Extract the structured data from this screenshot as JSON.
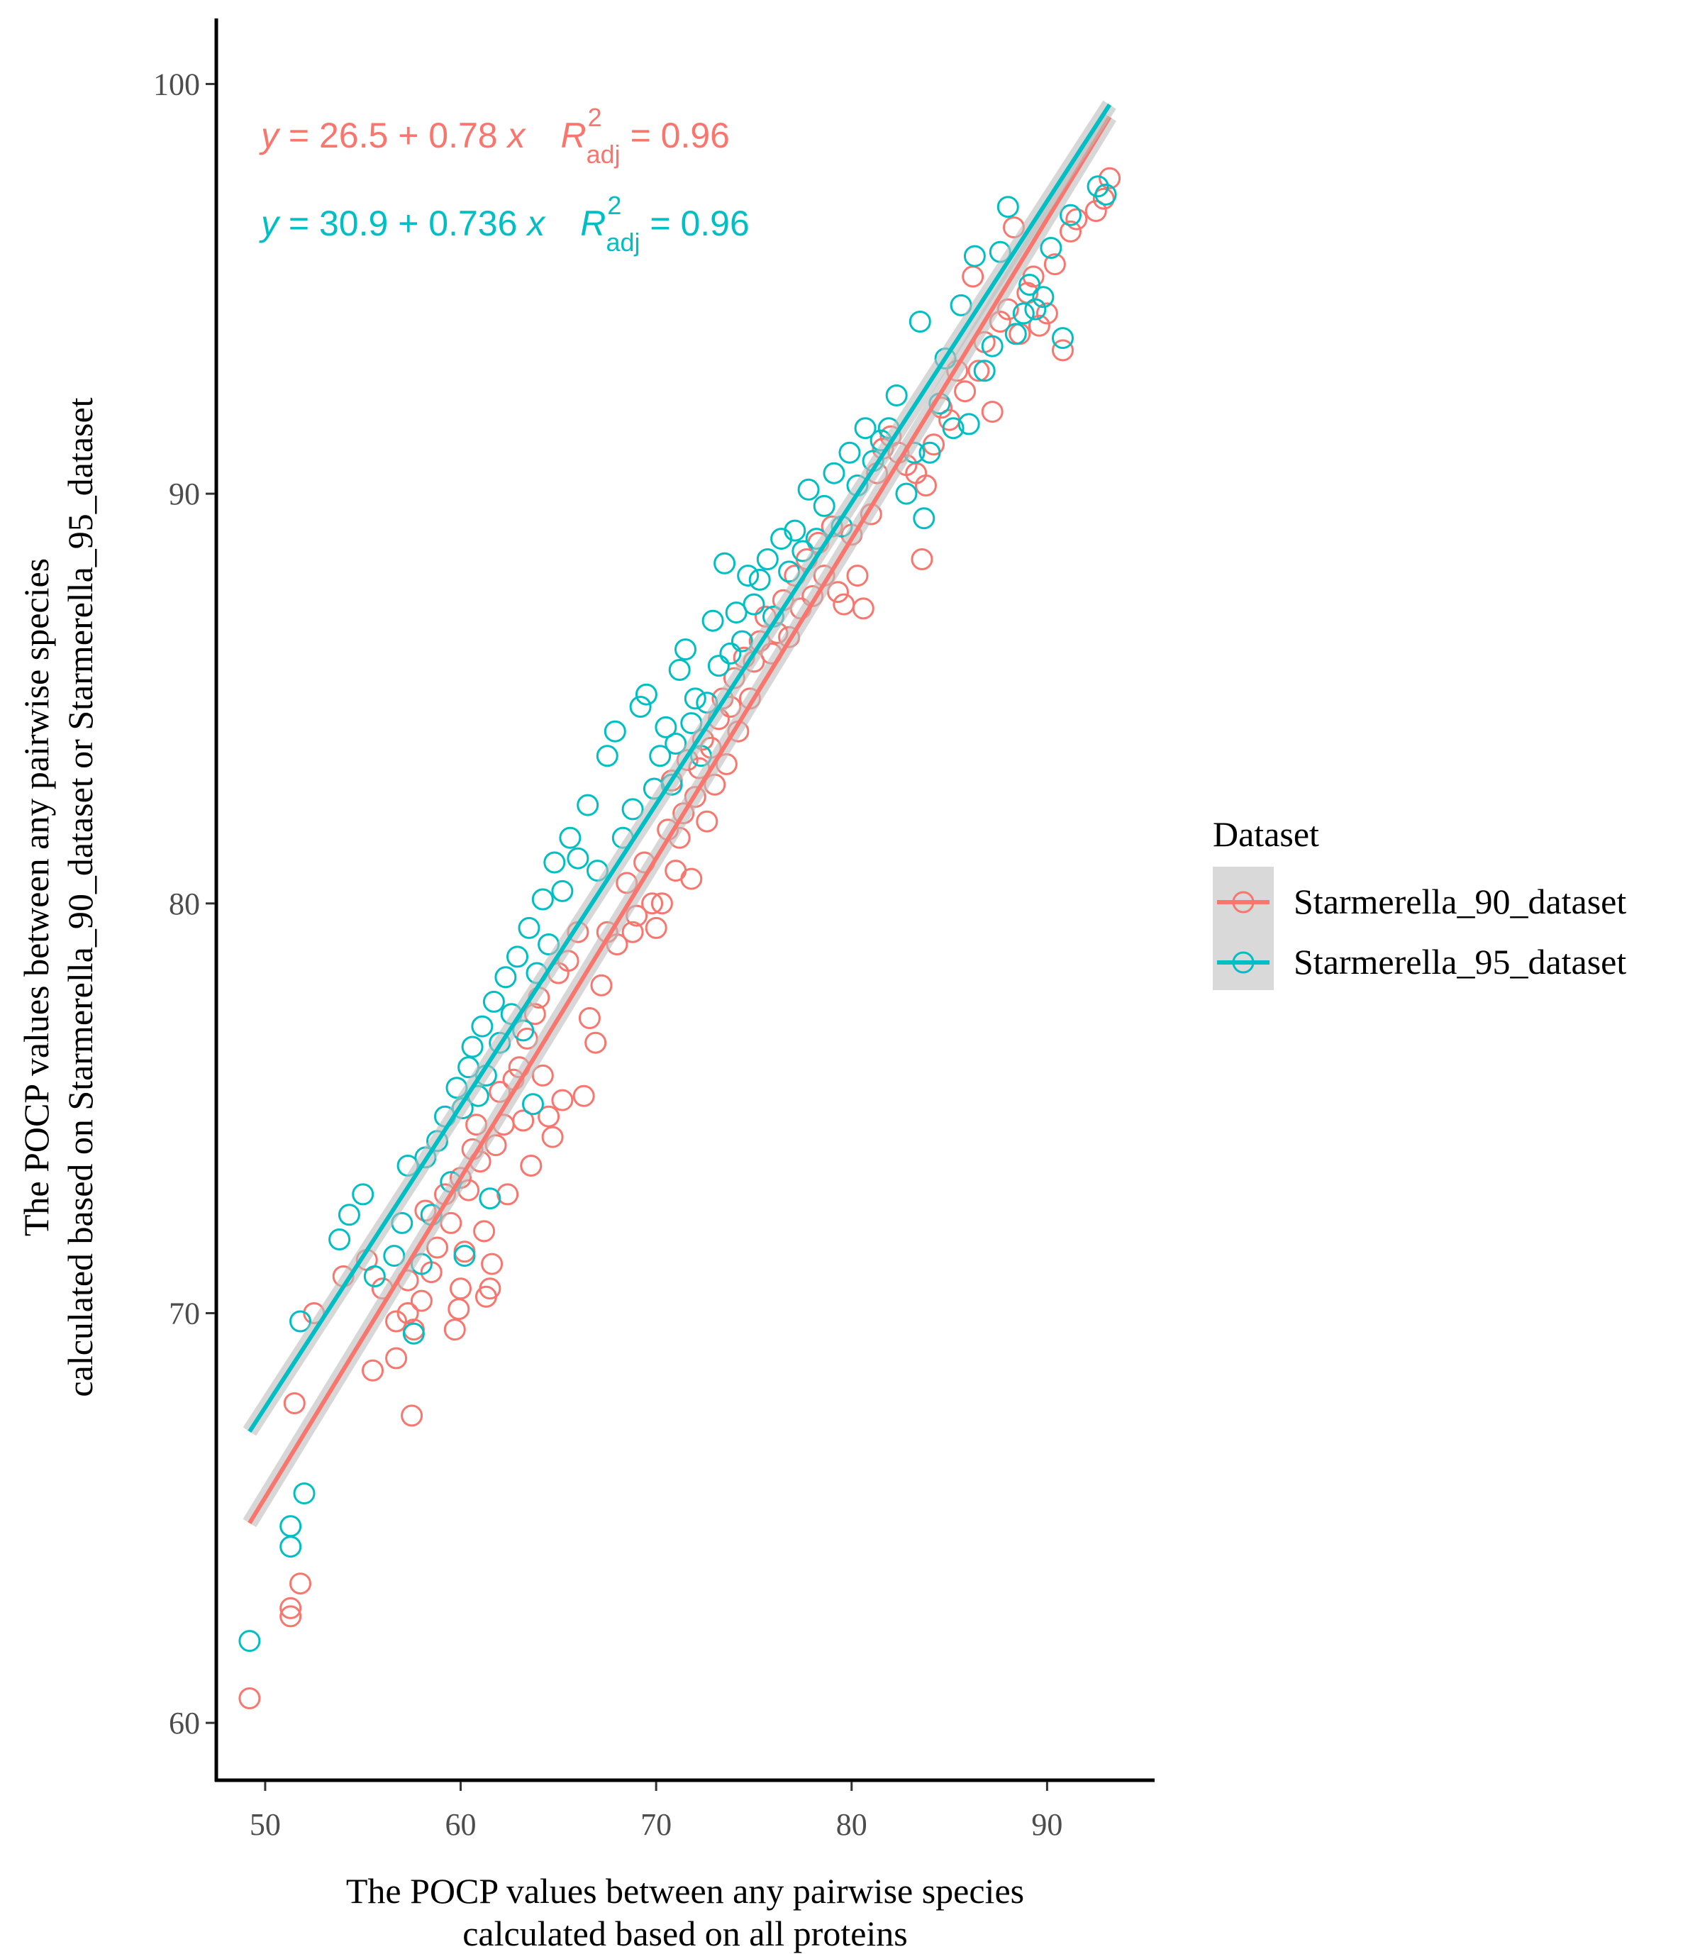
{
  "chart_data": {
    "type": "scatter",
    "xlabel": [
      "The POCP values between any pairwise species",
      "calculated based on all proteins"
    ],
    "ylabel": [
      "The POCP values between any pairwise species",
      "calculated based on Starmerella_90_dataset or Starmerella_95_dataset"
    ],
    "xlim": [
      47.5,
      95.5
    ],
    "ylim": [
      58.6,
      101.6
    ],
    "x_ticks": [
      "50",
      "60",
      "70",
      "80",
      "90"
    ],
    "y_ticks": [
      "60",
      "70",
      "80",
      "90",
      "100"
    ],
    "grid": false,
    "legend_position": "right",
    "legend_title": "Dataset",
    "series": [
      {
        "name": "Starmerella_90_dataset",
        "color": "#F8766D",
        "marker": "open-circle",
        "fit": {
          "intercept": 26.5,
          "slope": 0.78,
          "x_range": [
            49.2,
            93.2
          ]
        },
        "equation": {
          "y": "y",
          "body": " = 26.5 + 0.78 ",
          "x": "x",
          "R": "R",
          "sup": "2",
          "sub": "adj",
          "r2": " = 0.96"
        },
        "points": [
          [
            49.2,
            60.6
          ],
          [
            51.3,
            62.6
          ],
          [
            51.3,
            62.8
          ],
          [
            51.8,
            63.4
          ],
          [
            51.5,
            67.8
          ],
          [
            52.5,
            70.0
          ],
          [
            54.0,
            70.9
          ],
          [
            55.2,
            71.3
          ],
          [
            55.5,
            68.6
          ],
          [
            56.0,
            70.6
          ],
          [
            56.7,
            68.9
          ],
          [
            56.7,
            69.8
          ],
          [
            57.3,
            70.0
          ],
          [
            57.3,
            70.8
          ],
          [
            57.5,
            67.5
          ],
          [
            57.6,
            69.6
          ],
          [
            58.0,
            70.3
          ],
          [
            58.5,
            71.0
          ],
          [
            58.2,
            72.5
          ],
          [
            58.8,
            71.6
          ],
          [
            59.2,
            72.9
          ],
          [
            59.5,
            72.2
          ],
          [
            59.7,
            69.6
          ],
          [
            59.9,
            70.1
          ],
          [
            60.0,
            70.6
          ],
          [
            60.2,
            71.5
          ],
          [
            60.0,
            73.3
          ],
          [
            60.4,
            73.0
          ],
          [
            60.6,
            74.0
          ],
          [
            60.8,
            74.6
          ],
          [
            61.0,
            73.7
          ],
          [
            61.2,
            72.0
          ],
          [
            61.3,
            70.4
          ],
          [
            61.5,
            70.6
          ],
          [
            61.6,
            71.2
          ],
          [
            61.8,
            74.1
          ],
          [
            62.0,
            75.4
          ],
          [
            62.2,
            74.6
          ],
          [
            62.4,
            72.9
          ],
          [
            62.7,
            75.7
          ],
          [
            63.0,
            76.0
          ],
          [
            63.2,
            74.7
          ],
          [
            63.4,
            76.7
          ],
          [
            63.6,
            73.6
          ],
          [
            63.8,
            77.3
          ],
          [
            64.0,
            77.7
          ],
          [
            64.2,
            75.8
          ],
          [
            64.5,
            74.8
          ],
          [
            64.7,
            74.3
          ],
          [
            65.0,
            78.3
          ],
          [
            65.2,
            75.2
          ],
          [
            65.5,
            78.6
          ],
          [
            66.0,
            79.3
          ],
          [
            66.3,
            75.3
          ],
          [
            66.6,
            77.2
          ],
          [
            66.9,
            76.6
          ],
          [
            67.2,
            78.0
          ],
          [
            67.5,
            79.3
          ],
          [
            68.0,
            79.0
          ],
          [
            68.5,
            80.5
          ],
          [
            68.8,
            79.3
          ],
          [
            69.0,
            79.7
          ],
          [
            69.4,
            81.0
          ],
          [
            69.8,
            80.0
          ],
          [
            70.0,
            79.4
          ],
          [
            70.3,
            80.0
          ],
          [
            70.6,
            81.8
          ],
          [
            70.8,
            83.0
          ],
          [
            71.0,
            80.8
          ],
          [
            71.2,
            81.6
          ],
          [
            71.4,
            82.2
          ],
          [
            71.6,
            83.5
          ],
          [
            71.8,
            80.6
          ],
          [
            72.0,
            82.6
          ],
          [
            72.2,
            83.3
          ],
          [
            72.4,
            84.0
          ],
          [
            72.6,
            82.0
          ],
          [
            72.8,
            83.8
          ],
          [
            73.0,
            82.9
          ],
          [
            73.2,
            84.5
          ],
          [
            73.4,
            85.0
          ],
          [
            73.6,
            83.4
          ],
          [
            73.8,
            84.8
          ],
          [
            74.0,
            85.5
          ],
          [
            74.2,
            84.2
          ],
          [
            74.5,
            86.0
          ],
          [
            74.8,
            85.0
          ],
          [
            75.0,
            85.9
          ],
          [
            75.3,
            86.4
          ],
          [
            75.6,
            87.0
          ],
          [
            75.9,
            86.1
          ],
          [
            76.2,
            86.6
          ],
          [
            76.5,
            87.4
          ],
          [
            76.8,
            86.5
          ],
          [
            77.1,
            88.0
          ],
          [
            77.4,
            87.2
          ],
          [
            77.7,
            88.4
          ],
          [
            78.0,
            87.5
          ],
          [
            78.3,
            88.8
          ],
          [
            78.6,
            88.0
          ],
          [
            79.0,
            89.2
          ],
          [
            79.3,
            87.6
          ],
          [
            79.6,
            87.3
          ],
          [
            80.0,
            89.0
          ],
          [
            80.3,
            88.0
          ],
          [
            80.6,
            87.2
          ],
          [
            81.0,
            89.5
          ],
          [
            81.3,
            90.5
          ],
          [
            81.6,
            91.1
          ],
          [
            82.0,
            91.4
          ],
          [
            82.4,
            91.0
          ],
          [
            82.8,
            90.7
          ],
          [
            83.3,
            90.5
          ],
          [
            83.6,
            88.4
          ],
          [
            83.8,
            90.2
          ],
          [
            84.2,
            91.2
          ],
          [
            84.6,
            92.1
          ],
          [
            85.0,
            91.8
          ],
          [
            85.4,
            93.0
          ],
          [
            85.8,
            92.5
          ],
          [
            86.2,
            95.3
          ],
          [
            86.5,
            93.0
          ],
          [
            86.8,
            93.7
          ],
          [
            87.2,
            92.0
          ],
          [
            87.6,
            94.2
          ],
          [
            88.0,
            94.5
          ],
          [
            88.3,
            96.5
          ],
          [
            88.6,
            93.9
          ],
          [
            89.0,
            94.9
          ],
          [
            89.3,
            95.3
          ],
          [
            89.6,
            94.1
          ],
          [
            90.0,
            94.4
          ],
          [
            90.4,
            95.6
          ],
          [
            90.8,
            93.5
          ],
          [
            91.2,
            96.4
          ],
          [
            91.5,
            96.7
          ],
          [
            92.5,
            96.9
          ],
          [
            92.9,
            97.2
          ],
          [
            93.2,
            97.7
          ]
        ]
      },
      {
        "name": "Starmerella_95_dataset",
        "color": "#00BFC4",
        "marker": "open-circle",
        "fit": {
          "intercept": 30.9,
          "slope": 0.736,
          "x_range": [
            49.2,
            93.2
          ]
        },
        "equation": {
          "y": "y",
          "body": " = 30.9 + 0.736 ",
          "x": "x",
          "R": "R",
          "sup": "2",
          "sub": "adj",
          "r2": " = 0.96"
        },
        "points": [
          [
            49.2,
            62.0
          ],
          [
            51.3,
            64.3
          ],
          [
            51.3,
            64.8
          ],
          [
            52.0,
            65.6
          ],
          [
            51.8,
            69.8
          ],
          [
            53.8,
            71.8
          ],
          [
            54.3,
            72.4
          ],
          [
            55.0,
            72.9
          ],
          [
            55.6,
            70.9
          ],
          [
            56.6,
            71.4
          ],
          [
            57.0,
            72.2
          ],
          [
            57.3,
            73.6
          ],
          [
            57.6,
            69.5
          ],
          [
            58.0,
            71.2
          ],
          [
            58.2,
            73.8
          ],
          [
            58.5,
            72.4
          ],
          [
            58.8,
            74.2
          ],
          [
            59.2,
            74.8
          ],
          [
            59.5,
            73.2
          ],
          [
            59.8,
            75.5
          ],
          [
            60.1,
            75.0
          ],
          [
            60.2,
            71.4
          ],
          [
            60.4,
            76.0
          ],
          [
            60.6,
            76.5
          ],
          [
            60.9,
            75.3
          ],
          [
            61.1,
            77.0
          ],
          [
            61.3,
            75.8
          ],
          [
            61.5,
            72.8
          ],
          [
            61.7,
            77.6
          ],
          [
            62.0,
            76.6
          ],
          [
            62.3,
            78.2
          ],
          [
            62.6,
            77.3
          ],
          [
            62.9,
            78.7
          ],
          [
            63.2,
            76.9
          ],
          [
            63.5,
            79.4
          ],
          [
            63.7,
            75.1
          ],
          [
            63.9,
            78.3
          ],
          [
            64.2,
            80.1
          ],
          [
            64.5,
            79.0
          ],
          [
            64.8,
            81.0
          ],
          [
            65.2,
            80.3
          ],
          [
            65.6,
            81.6
          ],
          [
            66.0,
            81.1
          ],
          [
            66.5,
            82.4
          ],
          [
            67.0,
            80.8
          ],
          [
            67.5,
            83.6
          ],
          [
            67.9,
            84.2
          ],
          [
            68.3,
            81.6
          ],
          [
            68.8,
            82.3
          ],
          [
            69.2,
            84.8
          ],
          [
            69.5,
            85.1
          ],
          [
            69.9,
            82.8
          ],
          [
            70.2,
            83.6
          ],
          [
            70.5,
            84.3
          ],
          [
            70.8,
            82.9
          ],
          [
            71.0,
            83.9
          ],
          [
            71.2,
            85.7
          ],
          [
            71.5,
            86.2
          ],
          [
            71.8,
            84.4
          ],
          [
            72.0,
            85.0
          ],
          [
            72.3,
            83.6
          ],
          [
            72.6,
            84.9
          ],
          [
            72.9,
            86.9
          ],
          [
            73.2,
            85.8
          ],
          [
            73.5,
            88.3
          ],
          [
            73.8,
            86.1
          ],
          [
            74.1,
            87.1
          ],
          [
            74.4,
            86.4
          ],
          [
            74.7,
            88.0
          ],
          [
            75.0,
            87.3
          ],
          [
            75.3,
            87.9
          ],
          [
            75.7,
            88.4
          ],
          [
            76.0,
            87.0
          ],
          [
            76.4,
            88.9
          ],
          [
            76.8,
            88.1
          ],
          [
            77.1,
            89.1
          ],
          [
            77.5,
            88.6
          ],
          [
            77.8,
            90.1
          ],
          [
            78.2,
            88.9
          ],
          [
            78.6,
            89.7
          ],
          [
            79.1,
            90.5
          ],
          [
            79.5,
            89.2
          ],
          [
            79.9,
            91.0
          ],
          [
            80.3,
            90.2
          ],
          [
            80.7,
            91.6
          ],
          [
            81.1,
            90.8
          ],
          [
            81.5,
            91.3
          ],
          [
            81.9,
            91.6
          ],
          [
            82.3,
            92.4
          ],
          [
            82.8,
            90.0
          ],
          [
            83.2,
            91.0
          ],
          [
            83.5,
            94.2
          ],
          [
            83.7,
            89.4
          ],
          [
            84.0,
            91.0
          ],
          [
            84.5,
            92.2
          ],
          [
            84.8,
            93.3
          ],
          [
            85.2,
            91.6
          ],
          [
            85.6,
            94.6
          ],
          [
            86.0,
            91.7
          ],
          [
            86.3,
            95.8
          ],
          [
            86.8,
            93.0
          ],
          [
            87.2,
            93.6
          ],
          [
            87.6,
            95.9
          ],
          [
            88.0,
            97.0
          ],
          [
            88.4,
            93.9
          ],
          [
            88.8,
            94.4
          ],
          [
            89.1,
            95.1
          ],
          [
            89.4,
            94.5
          ],
          [
            89.8,
            94.8
          ],
          [
            90.2,
            96.0
          ],
          [
            90.8,
            93.8
          ],
          [
            91.2,
            96.8
          ],
          [
            92.6,
            97.5
          ],
          [
            93.0,
            97.3
          ]
        ]
      }
    ]
  }
}
